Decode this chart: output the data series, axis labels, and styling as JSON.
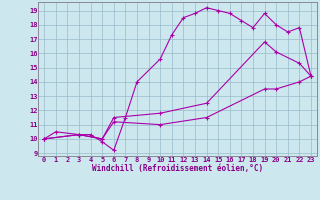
{
  "xlabel": "Windchill (Refroidissement éolien,°C)",
  "bg_color": "#cce8ee",
  "line_color": "#aa00aa",
  "grid_color": "#99bbcc",
  "xlim": [
    -0.5,
    23.5
  ],
  "ylim": [
    8.8,
    19.6
  ],
  "xticks": [
    0,
    1,
    2,
    3,
    4,
    5,
    6,
    7,
    8,
    9,
    10,
    11,
    12,
    13,
    14,
    15,
    16,
    17,
    18,
    19,
    20,
    21,
    22,
    23
  ],
  "yticks": [
    9,
    10,
    11,
    12,
    13,
    14,
    15,
    16,
    17,
    18,
    19
  ],
  "curve1_x": [
    0,
    1,
    3,
    4,
    5,
    6,
    7,
    8,
    10,
    11,
    12,
    13,
    14,
    15,
    16,
    17,
    18,
    19,
    20,
    21,
    22,
    23
  ],
  "curve1_y": [
    10.0,
    10.5,
    10.3,
    10.3,
    9.8,
    9.2,
    11.5,
    14.0,
    15.6,
    17.3,
    18.5,
    18.8,
    19.2,
    19.0,
    18.8,
    18.3,
    17.8,
    18.8,
    18.0,
    17.5,
    17.8,
    14.4
  ],
  "curve2_x": [
    0,
    3,
    5,
    6,
    10,
    14,
    19,
    20,
    22,
    23
  ],
  "curve2_y": [
    10.0,
    10.3,
    10.0,
    11.5,
    11.8,
    12.5,
    16.8,
    16.1,
    15.3,
    14.4
  ],
  "curve3_x": [
    0,
    3,
    5,
    6,
    10,
    14,
    19,
    20,
    22,
    23
  ],
  "curve3_y": [
    10.0,
    10.3,
    10.0,
    11.2,
    11.0,
    11.5,
    13.5,
    13.5,
    14.0,
    14.4
  ],
  "axis_color": "#888899",
  "tick_label_color": "#880088",
  "xlabel_color": "#880088",
  "font_family": "monospace",
  "tick_fontsize": 5.0,
  "xlabel_fontsize": 5.5
}
